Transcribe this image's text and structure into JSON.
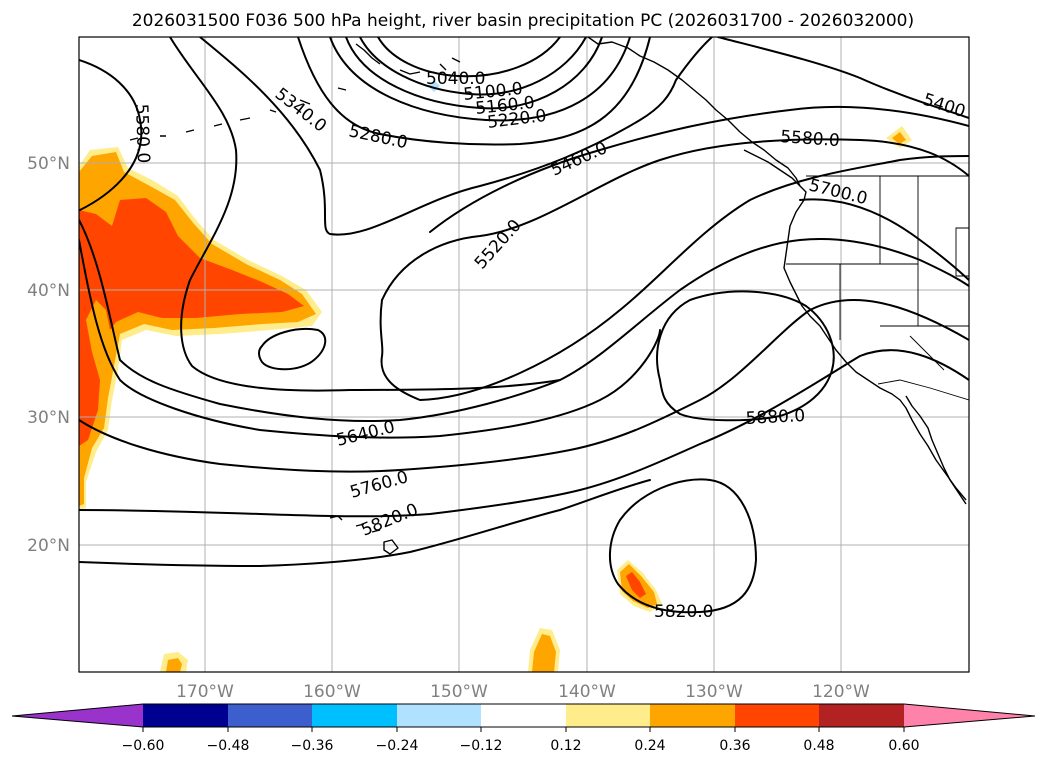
{
  "title": "2026031500 F036 500 hPa height, river basin precipitation PC (2026031700 - 2026032000)",
  "lat_labels": [
    "50°N",
    "40°N",
    "30°N",
    "20°N"
  ],
  "lon_labels": [
    "170°W",
    "160°W",
    "150°W",
    "140°W",
    "130°W",
    "120°W"
  ],
  "contour_labels": [
    "5040.0",
    "5100.0",
    "5160.0",
    "5220.0",
    "5280.0",
    "5340.0",
    "5400",
    "5460.0",
    "5520.0",
    "5580.0",
    "5580.0",
    "5640.0",
    "5700.0",
    "5760.0",
    "5820.0",
    "5820.0",
    "5880.0"
  ],
  "colorbar": {
    "ticks": [
      "−0.60",
      "−0.48",
      "−0.36",
      "−0.24",
      "−0.12",
      "0.12",
      "0.24",
      "0.36",
      "0.48",
      "0.60"
    ],
    "colors": {
      "lt_neg_060": "#9933cc",
      "neg_060_048": "#000090",
      "neg_048_036": "#3d5fcd",
      "neg_036_024": "#00bfff",
      "neg_024_012": "#b0e2ff",
      "neg_012_012": "#ffffff",
      "pos_012_024": "#ffec8b",
      "pos_024_036": "#ffa500",
      "pos_036_048": "#ff4500",
      "pos_048_060": "#b22222",
      "gt_060": "#ff82ab"
    }
  }
}
